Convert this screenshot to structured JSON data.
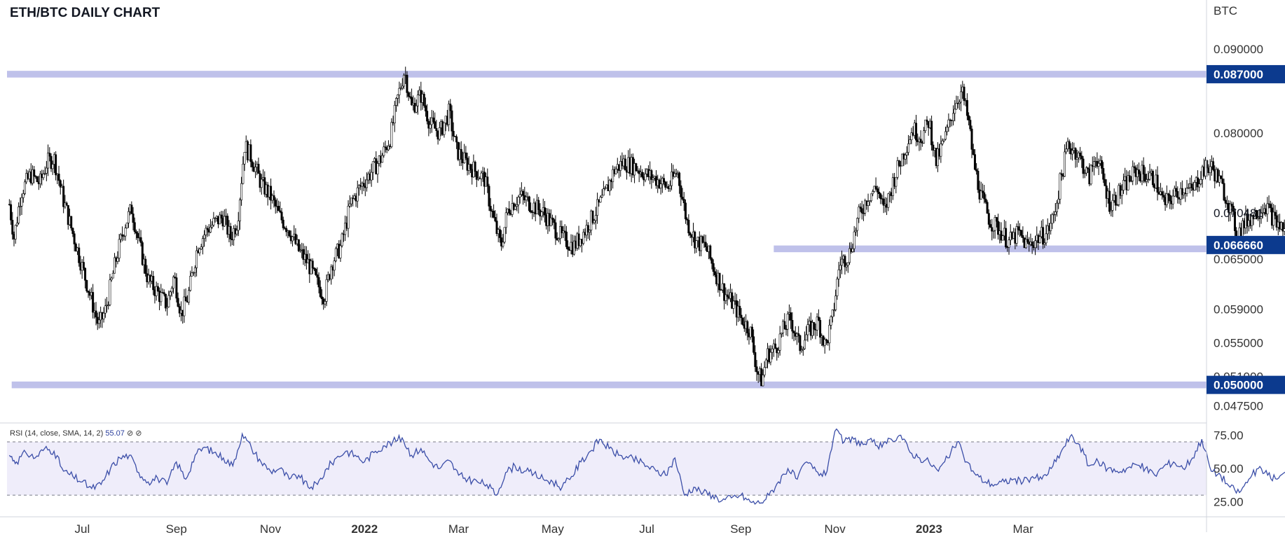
{
  "title": "ETH/BTC DAILY CHART",
  "axis_unit": "BTC",
  "rsi": {
    "label": "RSI (14, close, SMA, 14, 2)",
    "value": "55.07",
    "icons": "⊘ ⊘"
  },
  "colors": {
    "candle": "#000000",
    "zone": "#b4b6e6",
    "label_bg": "#0c3a8e",
    "rsi_line": "#3b4ea8",
    "rsi_band": "#efedfa",
    "arrow": "#888888"
  },
  "chart_data": [
    {
      "type": "candlestick",
      "title": "ETH/BTC DAILY CHART",
      "y_unit": "BTC",
      "ylim": [
        0.0458,
        0.0935
      ],
      "y_ticks": [
        "0.090000",
        "0.080000",
        "0.065000",
        "0.059000",
        "0.055000",
        "0.051000",
        "0.047500"
      ],
      "y_tick_values": [
        0.09,
        0.08,
        0.065,
        0.059,
        0.055,
        0.051,
        0.0475
      ],
      "x_ticks": [
        "Jul",
        "Sep",
        "Nov",
        "2022",
        "Mar",
        "May",
        "Jul",
        "Sep",
        "Nov",
        "2023",
        "Mar"
      ],
      "x_tick_months": [
        1,
        3,
        5,
        7,
        9,
        11,
        13,
        15,
        17,
        19,
        21
      ],
      "x_range_months": [
        -0.6,
        24.9
      ],
      "price_labels": [
        {
          "label": "0.087000",
          "value": 0.087,
          "highlight": true
        },
        {
          "label": "0.070481",
          "value": 0.070481,
          "highlight": false
        },
        {
          "label": "0.066660",
          "value": 0.06666,
          "highlight": true
        },
        {
          "label": "0.050000",
          "value": 0.05,
          "highlight": true
        }
      ],
      "zones": [
        {
          "from_month": -0.6,
          "to_month": 24.9,
          "low": 0.0866,
          "high": 0.0874
        },
        {
          "from_month": 15.7,
          "to_month": 24.9,
          "low": 0.0658,
          "high": 0.0666
        },
        {
          "from_month": -0.5,
          "to_month": 24.9,
          "low": 0.0496,
          "high": 0.0504
        }
      ],
      "close_path": [
        [
          -0.55,
          0.0715
        ],
        [
          -0.45,
          0.0675
        ],
        [
          -0.3,
          0.073
        ],
        [
          -0.1,
          0.075
        ],
        [
          0.1,
          0.074
        ],
        [
          0.25,
          0.0765
        ],
        [
          0.4,
          0.077
        ],
        [
          0.6,
          0.072
        ],
        [
          0.8,
          0.068
        ],
        [
          1.0,
          0.064
        ],
        [
          1.2,
          0.06
        ],
        [
          1.35,
          0.057
        ],
        [
          1.5,
          0.059
        ],
        [
          1.7,
          0.0645
        ],
        [
          1.9,
          0.069
        ],
        [
          2.05,
          0.071
        ],
        [
          2.2,
          0.067
        ],
        [
          2.4,
          0.0625
        ],
        [
          2.6,
          0.061
        ],
        [
          2.8,
          0.0595
        ],
        [
          2.95,
          0.063
        ],
        [
          3.1,
          0.0585
        ],
        [
          3.25,
          0.0605
        ],
        [
          3.45,
          0.0665
        ],
        [
          3.65,
          0.0685
        ],
        [
          3.85,
          0.0695
        ],
        [
          4.0,
          0.07
        ],
        [
          4.15,
          0.0675
        ],
        [
          4.3,
          0.0695
        ],
        [
          4.45,
          0.0785
        ],
        [
          4.6,
          0.077
        ],
        [
          4.8,
          0.074
        ],
        [
          5.0,
          0.0725
        ],
        [
          5.2,
          0.07
        ],
        [
          5.4,
          0.0685
        ],
        [
          5.6,
          0.066
        ],
        [
          5.8,
          0.0645
        ],
        [
          6.0,
          0.062
        ],
        [
          6.15,
          0.0605
        ],
        [
          6.3,
          0.0645
        ],
        [
          6.5,
          0.0665
        ],
        [
          6.7,
          0.0715
        ],
        [
          6.9,
          0.0735
        ],
        [
          7.1,
          0.075
        ],
        [
          7.35,
          0.077
        ],
        [
          7.55,
          0.0795
        ],
        [
          7.7,
          0.084
        ],
        [
          7.85,
          0.0875
        ],
        [
          8.0,
          0.083
        ],
        [
          8.2,
          0.0845
        ],
        [
          8.4,
          0.081
        ],
        [
          8.6,
          0.08
        ],
        [
          8.8,
          0.0825
        ],
        [
          8.95,
          0.078
        ],
        [
          9.15,
          0.0765
        ],
        [
          9.35,
          0.0755
        ],
        [
          9.55,
          0.0745
        ],
        [
          9.75,
          0.0695
        ],
        [
          9.9,
          0.0665
        ],
        [
          10.05,
          0.071
        ],
        [
          10.3,
          0.0725
        ],
        [
          10.55,
          0.0715
        ],
        [
          10.8,
          0.0705
        ],
        [
          11.0,
          0.069
        ],
        [
          11.2,
          0.0675
        ],
        [
          11.45,
          0.0665
        ],
        [
          11.7,
          0.0685
        ],
        [
          11.9,
          0.0705
        ],
        [
          12.1,
          0.0725
        ],
        [
          12.3,
          0.0755
        ],
        [
          12.5,
          0.0765
        ],
        [
          12.75,
          0.076
        ],
        [
          13.0,
          0.075
        ],
        [
          13.2,
          0.0745
        ],
        [
          13.45,
          0.0735
        ],
        [
          13.65,
          0.0755
        ],
        [
          13.85,
          0.0695
        ],
        [
          14.05,
          0.067
        ],
        [
          14.25,
          0.0665
        ],
        [
          14.45,
          0.0635
        ],
        [
          14.65,
          0.061
        ],
        [
          14.85,
          0.0595
        ],
        [
          15.0,
          0.058
        ],
        [
          15.2,
          0.0565
        ],
        [
          15.35,
          0.0515
        ],
        [
          15.45,
          0.0505
        ],
        [
          15.55,
          0.0535
        ],
        [
          15.75,
          0.0545
        ],
        [
          15.9,
          0.0565
        ],
        [
          16.05,
          0.058
        ],
        [
          16.25,
          0.0545
        ],
        [
          16.45,
          0.0565
        ],
        [
          16.65,
          0.0575
        ],
        [
          16.8,
          0.0545
        ],
        [
          16.95,
          0.058
        ],
        [
          17.1,
          0.0645
        ],
        [
          17.3,
          0.0655
        ],
        [
          17.5,
          0.07
        ],
        [
          17.7,
          0.0725
        ],
        [
          17.9,
          0.0735
        ],
        [
          18.05,
          0.0705
        ],
        [
          18.25,
          0.0745
        ],
        [
          18.45,
          0.0775
        ],
        [
          18.65,
          0.0805
        ],
        [
          18.85,
          0.0795
        ],
        [
          19.0,
          0.0815
        ],
        [
          19.15,
          0.0765
        ],
        [
          19.35,
          0.0795
        ],
        [
          19.55,
          0.0835
        ],
        [
          19.7,
          0.085
        ],
        [
          19.85,
          0.081
        ],
        [
          19.95,
          0.0765
        ],
        [
          20.1,
          0.0725
        ],
        [
          20.3,
          0.0695
        ],
        [
          20.5,
          0.0685
        ],
        [
          20.7,
          0.067
        ],
        [
          20.9,
          0.068
        ],
        [
          21.1,
          0.0665
        ],
        [
          21.3,
          0.0675
        ],
        [
          21.5,
          0.068
        ],
        [
          21.65,
          0.07
        ],
        [
          21.8,
          0.0745
        ],
        [
          21.95,
          0.0785
        ],
        [
          22.1,
          0.078
        ],
        [
          22.25,
          0.0765
        ],
        [
          22.4,
          0.0745
        ],
        [
          22.55,
          0.0775
        ],
        [
          22.7,
          0.0745
        ],
        [
          22.85,
          0.0715
        ],
        [
          23.0,
          0.0725
        ],
        [
          23.2,
          0.074
        ],
        [
          23.4,
          0.0755
        ],
        [
          23.6,
          0.075
        ],
        [
          23.8,
          0.0745
        ],
        [
          24.0,
          0.0715
        ],
        [
          24.2,
          0.0725
        ],
        [
          24.4,
          0.0735
        ],
        [
          24.6,
          0.073
        ],
        [
          24.8,
          0.0755
        ],
        [
          25.0,
          0.076
        ],
        [
          25.15,
          0.0745
        ],
        [
          25.35,
          0.072
        ],
        [
          25.55,
          0.068
        ],
        [
          25.75,
          0.0695
        ],
        [
          25.95,
          0.0705
        ],
        [
          26.15,
          0.0715
        ],
        [
          26.35,
          0.0695
        ],
        [
          26.55,
          0.0685
        ],
        [
          26.75,
          0.0695
        ],
        [
          26.95,
          0.0705
        ]
      ],
      "projection": {
        "from": [
          26.95,
          0.0715
        ],
        "to": [
          27.15,
          0.0775
        ]
      }
    },
    {
      "type": "line",
      "title": "RSI (14, close, SMA, 14, 2)",
      "last_value": 55.07,
      "ylim": [
        18,
        80
      ],
      "y_ticks": [
        "75.00",
        "50.00",
        "25.00"
      ],
      "y_tick_values": [
        75,
        50,
        25
      ],
      "band": [
        30,
        70
      ],
      "path": [
        [
          -0.55,
          60
        ],
        [
          -0.4,
          55
        ],
        [
          -0.2,
          62
        ],
        [
          0.0,
          58
        ],
        [
          0.2,
          65
        ],
        [
          0.4,
          63
        ],
        [
          0.6,
          48
        ],
        [
          0.8,
          44
        ],
        [
          1.0,
          40
        ],
        [
          1.2,
          35
        ],
        [
          1.4,
          38
        ],
        [
          1.6,
          50
        ],
        [
          1.8,
          58
        ],
        [
          2.0,
          60
        ],
        [
          2.2,
          47
        ],
        [
          2.4,
          40
        ],
        [
          2.6,
          43
        ],
        [
          2.8,
          38
        ],
        [
          3.0,
          55
        ],
        [
          3.2,
          42
        ],
        [
          3.4,
          60
        ],
        [
          3.6,
          66
        ],
        [
          3.8,
          62
        ],
        [
          4.0,
          58
        ],
        [
          4.2,
          52
        ],
        [
          4.4,
          76
        ],
        [
          4.6,
          65
        ],
        [
          4.8,
          55
        ],
        [
          5.0,
          48
        ],
        [
          5.2,
          50
        ],
        [
          5.4,
          42
        ],
        [
          5.6,
          45
        ],
        [
          5.8,
          36
        ],
        [
          6.0,
          38
        ],
        [
          6.2,
          50
        ],
        [
          6.4,
          58
        ],
        [
          6.6,
          63
        ],
        [
          6.8,
          60
        ],
        [
          7.0,
          55
        ],
        [
          7.2,
          62
        ],
        [
          7.4,
          67
        ],
        [
          7.6,
          70
        ],
        [
          7.8,
          73
        ],
        [
          8.0,
          60
        ],
        [
          8.2,
          65
        ],
        [
          8.4,
          55
        ],
        [
          8.6,
          50
        ],
        [
          8.8,
          56
        ],
        [
          9.0,
          45
        ],
        [
          9.2,
          42
        ],
        [
          9.4,
          40
        ],
        [
          9.6,
          38
        ],
        [
          9.8,
          30
        ],
        [
          10.0,
          47
        ],
        [
          10.2,
          52
        ],
        [
          10.4,
          48
        ],
        [
          10.6,
          46
        ],
        [
          10.8,
          42
        ],
        [
          11.0,
          40
        ],
        [
          11.2,
          36
        ],
        [
          11.4,
          44
        ],
        [
          11.6,
          55
        ],
        [
          11.8,
          63
        ],
        [
          12.0,
          72
        ],
        [
          12.2,
          65
        ],
        [
          12.4,
          60
        ],
        [
          12.6,
          58
        ],
        [
          12.8,
          56
        ],
        [
          13.0,
          52
        ],
        [
          13.2,
          48
        ],
        [
          13.4,
          45
        ],
        [
          13.6,
          58
        ],
        [
          13.8,
          30
        ],
        [
          14.0,
          36
        ],
        [
          14.2,
          32
        ],
        [
          14.4,
          30
        ],
        [
          14.6,
          26
        ],
        [
          14.8,
          28
        ],
        [
          15.0,
          30
        ],
        [
          15.2,
          25
        ],
        [
          15.4,
          24
        ],
        [
          15.6,
          30
        ],
        [
          15.8,
          40
        ],
        [
          16.0,
          50
        ],
        [
          16.2,
          42
        ],
        [
          16.4,
          55
        ],
        [
          16.6,
          48
        ],
        [
          16.8,
          45
        ],
        [
          17.0,
          78
        ],
        [
          17.2,
          70
        ],
        [
          17.4,
          72
        ],
        [
          17.6,
          68
        ],
        [
          17.8,
          70
        ],
        [
          18.0,
          66
        ],
        [
          18.2,
          72
        ],
        [
          18.4,
          75
        ],
        [
          18.6,
          62
        ],
        [
          18.8,
          58
        ],
        [
          19.0,
          55
        ],
        [
          19.2,
          48
        ],
        [
          19.4,
          58
        ],
        [
          19.6,
          70
        ],
        [
          19.8,
          55
        ],
        [
          20.0,
          45
        ],
        [
          20.2,
          40
        ],
        [
          20.4,
          38
        ],
        [
          20.6,
          40
        ],
        [
          20.8,
          42
        ],
        [
          21.0,
          40
        ],
        [
          21.2,
          44
        ],
        [
          21.4,
          42
        ],
        [
          21.6,
          50
        ],
        [
          21.8,
          62
        ],
        [
          22.0,
          74
        ],
        [
          22.2,
          68
        ],
        [
          22.4,
          52
        ],
        [
          22.6,
          55
        ],
        [
          22.8,
          50
        ],
        [
          23.0,
          48
        ],
        [
          23.2,
          50
        ],
        [
          23.4,
          53
        ],
        [
          23.6,
          50
        ],
        [
          23.8,
          45
        ],
        [
          24.0,
          52
        ],
        [
          24.2,
          55
        ],
        [
          24.4,
          50
        ],
        [
          24.6,
          58
        ],
        [
          24.8,
          72
        ],
        [
          25.0,
          48
        ],
        [
          25.2,
          45
        ],
        [
          25.4,
          36
        ],
        [
          25.6,
          32
        ],
        [
          25.8,
          42
        ],
        [
          26.0,
          50
        ],
        [
          26.2,
          45
        ],
        [
          26.4,
          42
        ],
        [
          26.6,
          47
        ],
        [
          26.8,
          46
        ],
        [
          27.0,
          52
        ],
        [
          27.05,
          55.07
        ]
      ]
    }
  ]
}
